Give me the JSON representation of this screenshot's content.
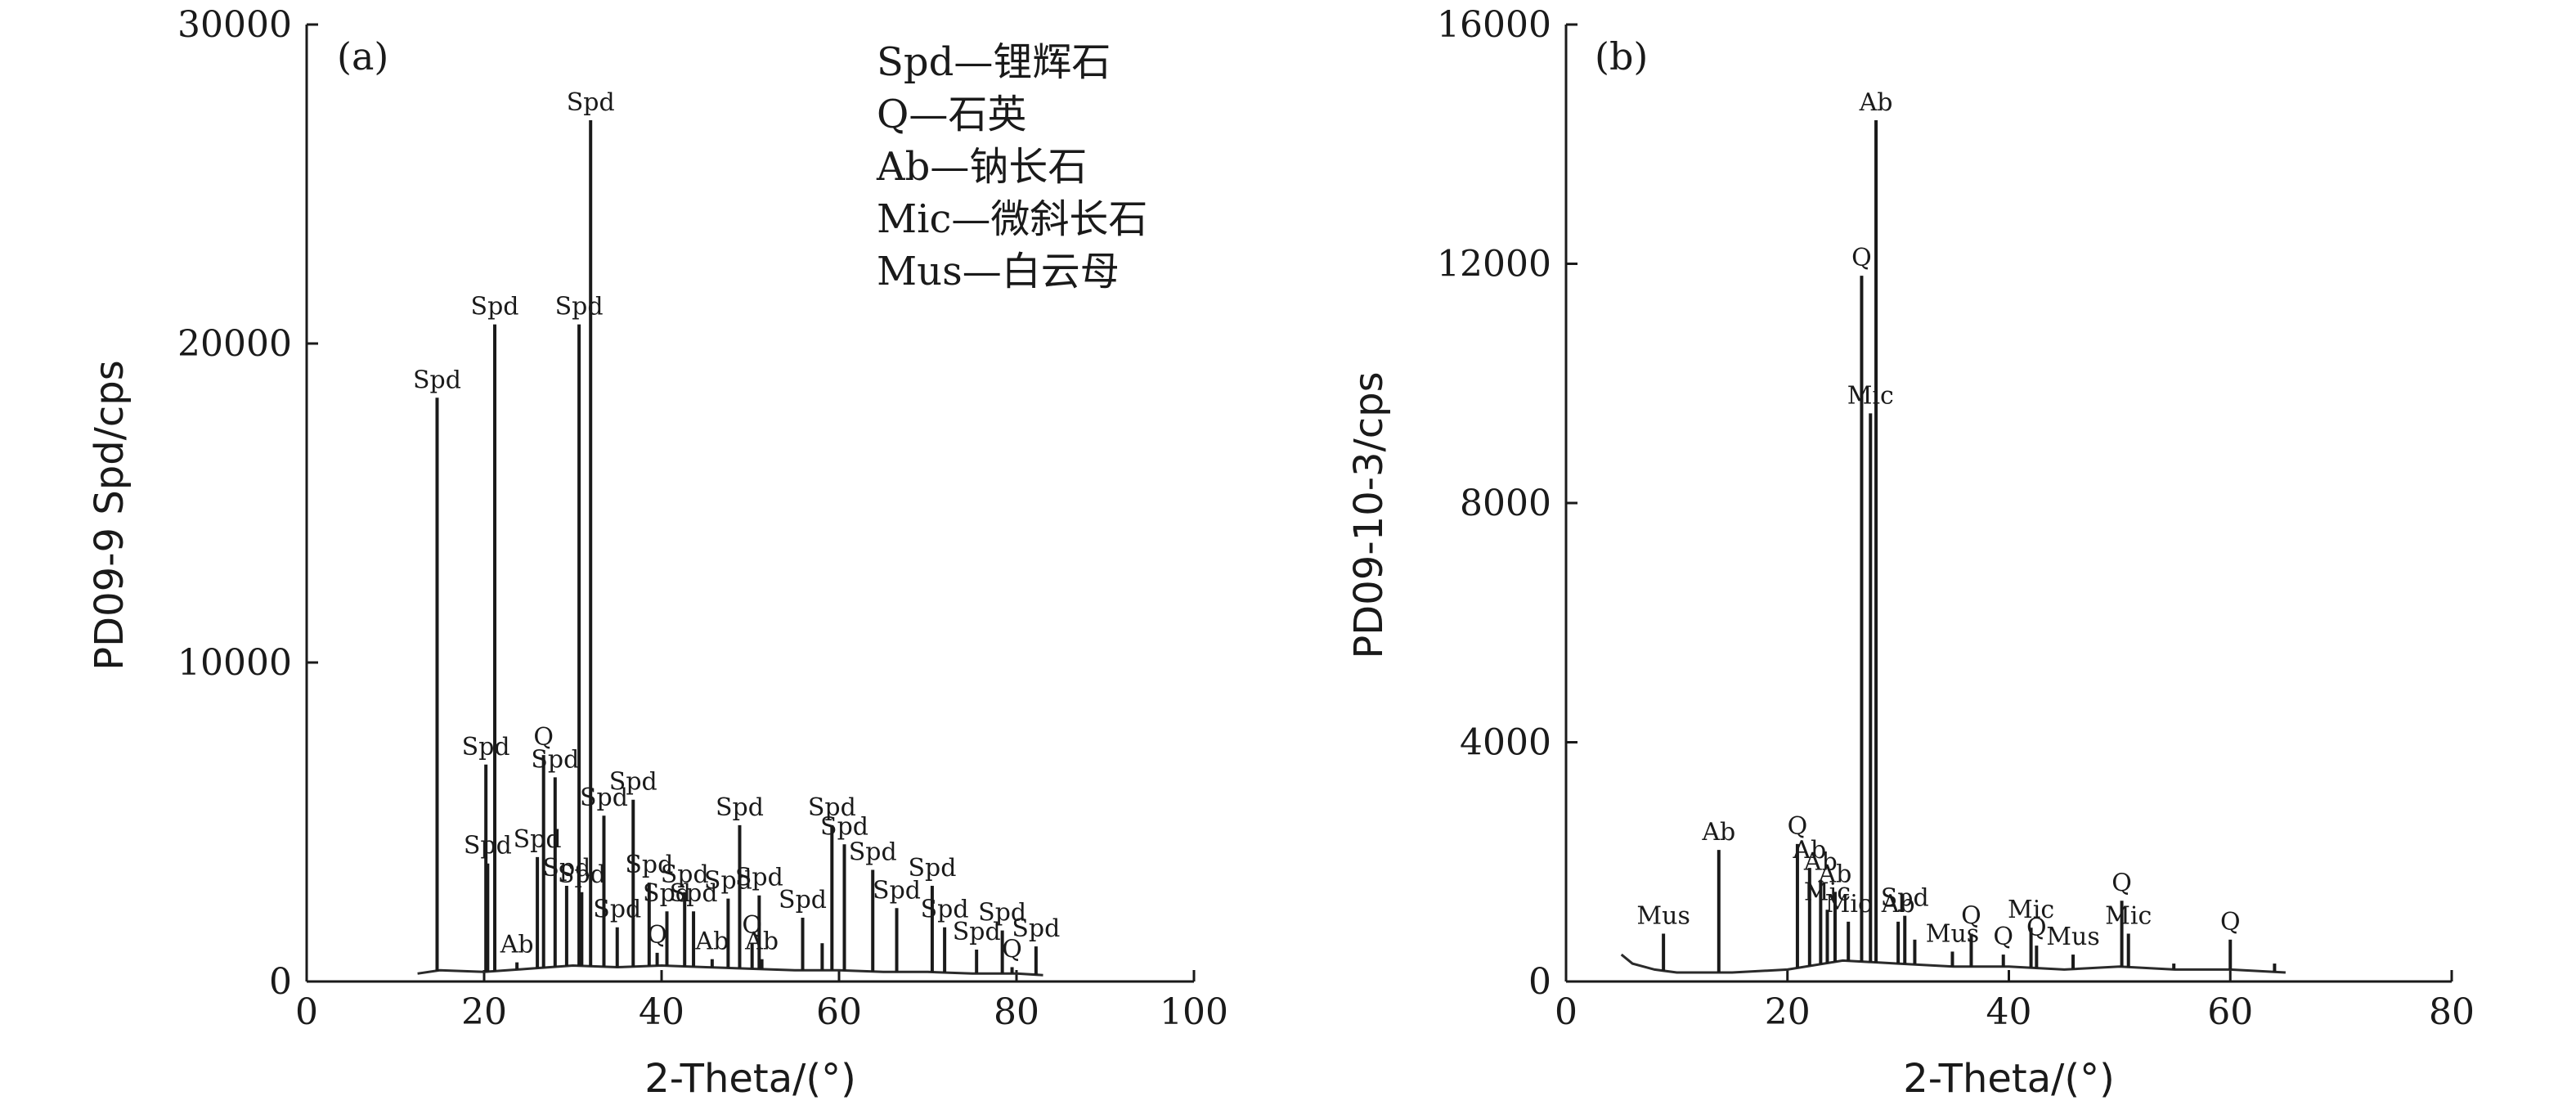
{
  "chart_data": [
    {
      "type": "line",
      "panel_label": "(a)",
      "xlabel": "2-Theta/(°)",
      "ylabel": "PD09-9 Spd/cps",
      "xlim": [
        0,
        100
      ],
      "ylim": [
        0,
        30000
      ],
      "x_ticks": [
        "0",
        "20",
        "40",
        "60",
        "80",
        "100"
      ],
      "y_ticks": [
        "0",
        "10000",
        "20000",
        "30000"
      ],
      "legend": [
        "Spd—锂辉石",
        "Q—石英",
        "Ab—钠长石",
        "Mic—微斜长石",
        "Mus—白云母"
      ],
      "legend_position": "top-right",
      "baseline": [
        [
          12.5,
          250
        ],
        [
          15,
          350
        ],
        [
          20,
          300
        ],
        [
          25,
          400
        ],
        [
          30,
          500
        ],
        [
          35,
          450
        ],
        [
          40,
          500
        ],
        [
          45,
          450
        ],
        [
          50,
          400
        ],
        [
          55,
          350
        ],
        [
          60,
          350
        ],
        [
          65,
          300
        ],
        [
          70,
          300
        ],
        [
          75,
          250
        ],
        [
          80,
          250
        ],
        [
          83,
          200
        ]
      ],
      "peaks": [
        {
          "x": 14.7,
          "y": 18300,
          "label": "Spd"
        },
        {
          "x": 20.2,
          "y": 6800,
          "label": "Spd"
        },
        {
          "x": 20.4,
          "y": 3700,
          "label": "Spd"
        },
        {
          "x": 21.2,
          "y": 20600,
          "label": "Spd"
        },
        {
          "x": 23.7,
          "y": 600,
          "label": "Ab"
        },
        {
          "x": 26.0,
          "y": 3900,
          "label": "Spd"
        },
        {
          "x": 26.7,
          "y": 7100,
          "label": "Q"
        },
        {
          "x": 28.0,
          "y": 6400,
          "label": "Spd"
        },
        {
          "x": 29.3,
          "y": 3000,
          "label": "Spd"
        },
        {
          "x": 30.7,
          "y": 20600,
          "label": "Spd"
        },
        {
          "x": 31.0,
          "y": 2800,
          "label": "Spd"
        },
        {
          "x": 32.0,
          "y": 27000,
          "label": "Spd"
        },
        {
          "x": 33.5,
          "y": 5200,
          "label": "Spd"
        },
        {
          "x": 35.0,
          "y": 1700,
          "label": "Spd"
        },
        {
          "x": 36.8,
          "y": 5700,
          "label": "Spd"
        },
        {
          "x": 38.6,
          "y": 3100,
          "label": "Spd"
        },
        {
          "x": 39.5,
          "y": 900,
          "label": "Q"
        },
        {
          "x": 40.6,
          "y": 2200,
          "label": "Spd"
        },
        {
          "x": 42.6,
          "y": 2800,
          "label": "Spd"
        },
        {
          "x": 43.6,
          "y": 2200,
          "label": "Spd"
        },
        {
          "x": 45.7,
          "y": 700,
          "label": "Ab"
        },
        {
          "x": 47.5,
          "y": 2600,
          "label": "Spd"
        },
        {
          "x": 48.8,
          "y": 4900,
          "label": "Spd"
        },
        {
          "x": 50.2,
          "y": 1200,
          "label": "Q"
        },
        {
          "x": 51.0,
          "y": 2700,
          "label": "Spd"
        },
        {
          "x": 51.3,
          "y": 700,
          "label": "Ab"
        },
        {
          "x": 55.9,
          "y": 2000,
          "label": "Spd"
        },
        {
          "x": 58.1,
          "y": 1200,
          "label": ""
        },
        {
          "x": 59.2,
          "y": 4900,
          "label": "Spd"
        },
        {
          "x": 60.6,
          "y": 4300,
          "label": "Spd"
        },
        {
          "x": 63.8,
          "y": 3500,
          "label": "Spd"
        },
        {
          "x": 66.5,
          "y": 2300,
          "label": "Spd"
        },
        {
          "x": 70.5,
          "y": 3000,
          "label": "Spd"
        },
        {
          "x": 71.9,
          "y": 1700,
          "label": "Spd"
        },
        {
          "x": 75.5,
          "y": 1000,
          "label": "Spd"
        },
        {
          "x": 78.4,
          "y": 1600,
          "label": "Spd"
        },
        {
          "x": 79.5,
          "y": 450,
          "label": "Q"
        },
        {
          "x": 82.2,
          "y": 1100,
          "label": "Spd"
        }
      ]
    },
    {
      "type": "line",
      "panel_label": "(b)",
      "xlabel": "2-Theta/(°)",
      "ylabel": "PD09-10-3/cps",
      "xlim": [
        0,
        80
      ],
      "ylim": [
        0,
        16000
      ],
      "x_ticks": [
        "0",
        "20",
        "40",
        "60",
        "80"
      ],
      "y_ticks": [
        "0",
        "4000",
        "8000",
        "12000",
        "16000"
      ],
      "baseline": [
        [
          5,
          450
        ],
        [
          6,
          300
        ],
        [
          8,
          200
        ],
        [
          10,
          150
        ],
        [
          15,
          150
        ],
        [
          20,
          200
        ],
        [
          25,
          350
        ],
        [
          30,
          300
        ],
        [
          35,
          250
        ],
        [
          40,
          250
        ],
        [
          45,
          200
        ],
        [
          50,
          250
        ],
        [
          55,
          200
        ],
        [
          60,
          200
        ],
        [
          65,
          150
        ]
      ],
      "peaks": [
        {
          "x": 8.8,
          "y": 800,
          "label": "Mus"
        },
        {
          "x": 13.8,
          "y": 2200,
          "label": "Ab"
        },
        {
          "x": 20.9,
          "y": 2300,
          "label": "Q"
        },
        {
          "x": 22.0,
          "y": 1900,
          "label": "Ab"
        },
        {
          "x": 23.0,
          "y": 1700,
          "label": "Ab"
        },
        {
          "x": 23.6,
          "y": 1200,
          "label": "Mic"
        },
        {
          "x": 24.3,
          "y": 1500,
          "label": "Ab"
        },
        {
          "x": 25.5,
          "y": 1000,
          "label": "Mic"
        },
        {
          "x": 26.7,
          "y": 11800,
          "label": "Q"
        },
        {
          "x": 27.5,
          "y": 9500,
          "label": "Mic"
        },
        {
          "x": 28.0,
          "y": 14400,
          "label": "Ab"
        },
        {
          "x": 30.0,
          "y": 1000,
          "label": "Ab"
        },
        {
          "x": 30.6,
          "y": 1100,
          "label": "Spd"
        },
        {
          "x": 31.5,
          "y": 700,
          "label": ""
        },
        {
          "x": 34.9,
          "y": 500,
          "label": "Mus"
        },
        {
          "x": 36.6,
          "y": 800,
          "label": "Q"
        },
        {
          "x": 39.5,
          "y": 450,
          "label": "Q"
        },
        {
          "x": 42.0,
          "y": 900,
          "label": "Mic"
        },
        {
          "x": 42.5,
          "y": 600,
          "label": "Q"
        },
        {
          "x": 45.8,
          "y": 450,
          "label": "Mus"
        },
        {
          "x": 50.2,
          "y": 1350,
          "label": "Q"
        },
        {
          "x": 50.8,
          "y": 800,
          "label": "Mic"
        },
        {
          "x": 54.9,
          "y": 300,
          "label": ""
        },
        {
          "x": 60.0,
          "y": 700,
          "label": "Q"
        },
        {
          "x": 64.0,
          "y": 300,
          "label": ""
        }
      ]
    }
  ]
}
